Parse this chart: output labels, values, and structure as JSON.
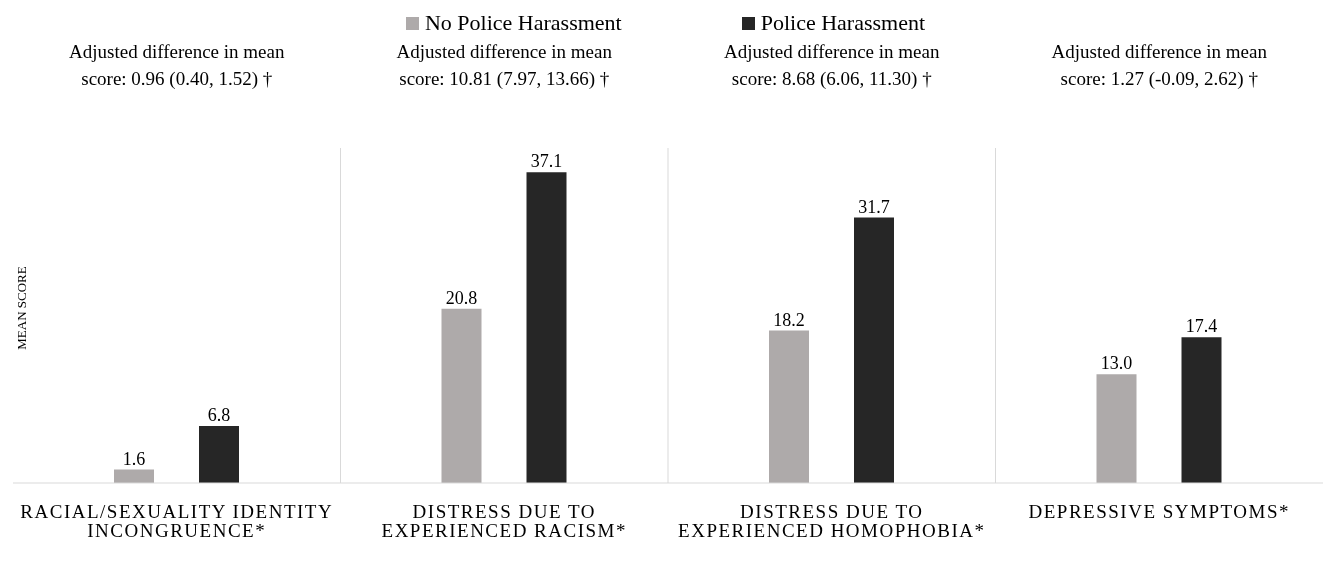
{
  "chart_data": {
    "type": "bar",
    "ylabel": "MEAN SCORE",
    "legend": "top",
    "grid": "x",
    "categories": [
      "RACIAL/SEXUALITY IDENTITY INCONGRUENCE*",
      "DISTRESS DUE TO EXPERIENCED RACISM*",
      "DISTRESS DUE TO EXPERIENCED HOMOPHOBIA*",
      "DEPRESSIVE SYMPTOMS*"
    ],
    "series": [
      {
        "name": "No Police Harassment",
        "color": "#aeaaaa",
        "values": [
          1.6,
          20.8,
          18.2,
          13.0
        ],
        "value_labels": [
          "1.6",
          "20.8",
          "18.2",
          "13.0"
        ]
      },
      {
        "name": "Police Harassment",
        "color": "#262626",
        "values": [
          6.8,
          37.1,
          31.7,
          17.4
        ],
        "value_labels": [
          "6.8",
          "37.1",
          "31.7",
          "17.4"
        ]
      }
    ],
    "annotations": [
      "Adjusted difference in mean score: 0.96 (0.40, 1.52) †",
      "Adjusted difference in mean score: 10.81 (7.97, 13.66) †",
      "Adjusted difference in mean score: 8.68 (6.06, 11.30) †",
      "Adjusted difference in mean score: 1.27 (-0.09, 2.62) †"
    ]
  }
}
